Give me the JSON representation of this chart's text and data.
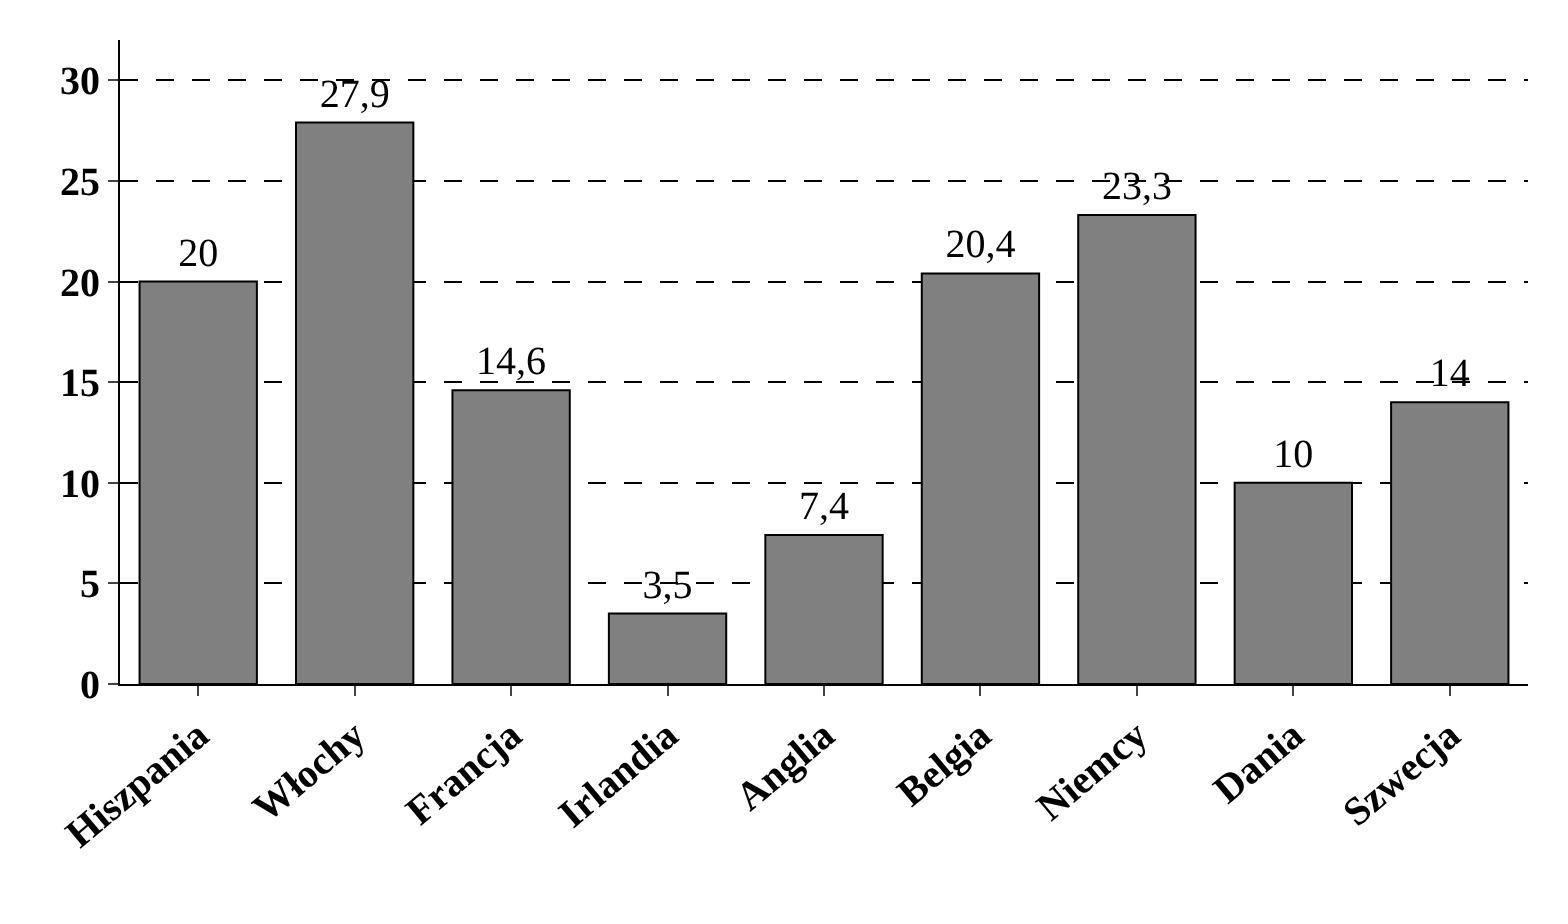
{
  "chart_data": {
    "type": "bar",
    "categories": [
      "Hiszpania",
      "Włochy",
      "Francja",
      "Irlandia",
      "Anglia",
      "Belgia",
      "Niemcy",
      "Dania",
      "Szwecja"
    ],
    "values": [
      20,
      27.9,
      14.6,
      3.5,
      7.4,
      20.4,
      23.3,
      10,
      14
    ],
    "value_labels": [
      "20",
      "27,9",
      "14,6",
      "3,5",
      "7,4",
      "20,4",
      "23,3",
      "10",
      "14"
    ],
    "color": "#808080",
    "ylim": [
      0,
      32
    ],
    "yticks": [
      0,
      5,
      10,
      15,
      20,
      25,
      30
    ],
    "grid": "y",
    "line_style": "dashed"
  }
}
